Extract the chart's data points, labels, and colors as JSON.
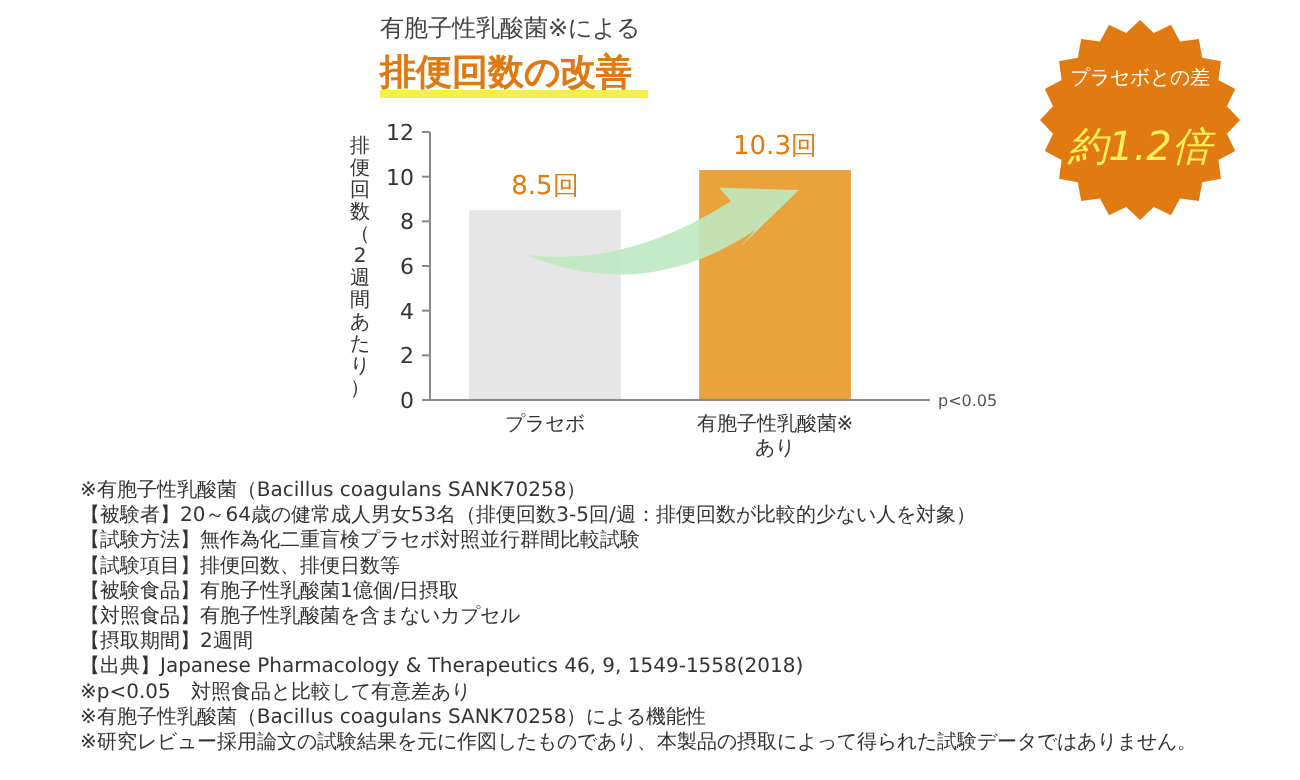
{
  "chart_data": {
    "type": "bar",
    "subtitle": "有胞子性乳酸菌※による",
    "title": "排便回数の改善",
    "ylabel": "排便回数（2週間あたり）",
    "categories": [
      "プラセボ",
      "有胞子性乳酸菌※\nあり"
    ],
    "values": [
      8.5,
      10.3
    ],
    "colors": [
      "#e6e6e6",
      "#e8a33c"
    ],
    "value_labels": [
      "8.5回",
      "10.3回"
    ],
    "ylim": [
      0,
      12
    ],
    "yticks": [
      0,
      2,
      4,
      6,
      8,
      10,
      12
    ],
    "annotations": [
      "プラセボとの差",
      "約1.2倍",
      "p<0.05",
      "※有胞子性乳酸菌（Bacillus coagulans SANK70258）",
      "【被験者】20～64歳の健常成人男女53名（排便回数3-5回/週：排便回数が比較的少ない人を対象）",
      "【試験方法】無作為化二重盲検プラセボ対照並行群間比較試験",
      "【試験項目】排便回数、排便日数等",
      "【被験食品】有胞子性乳酸菌1億個/日摂取",
      "【対照食品】有胞子性乳酸菌を含まないカプセル",
      "【摂取期間】2週間",
      "【出典】Japanese Pharmacology & Therapeutics 46, 9, 1549-1558(2018)",
      "※p<0.05　対照食品と比較して有意差あり",
      "※有胞子性乳酸菌（Bacillus coagulans SANK70258）による機能性",
      "※研究レビュー採用論文の試験結果を元に作図したものであり、本製品の摂取によって得られた試験データではありません。"
    ]
  }
}
